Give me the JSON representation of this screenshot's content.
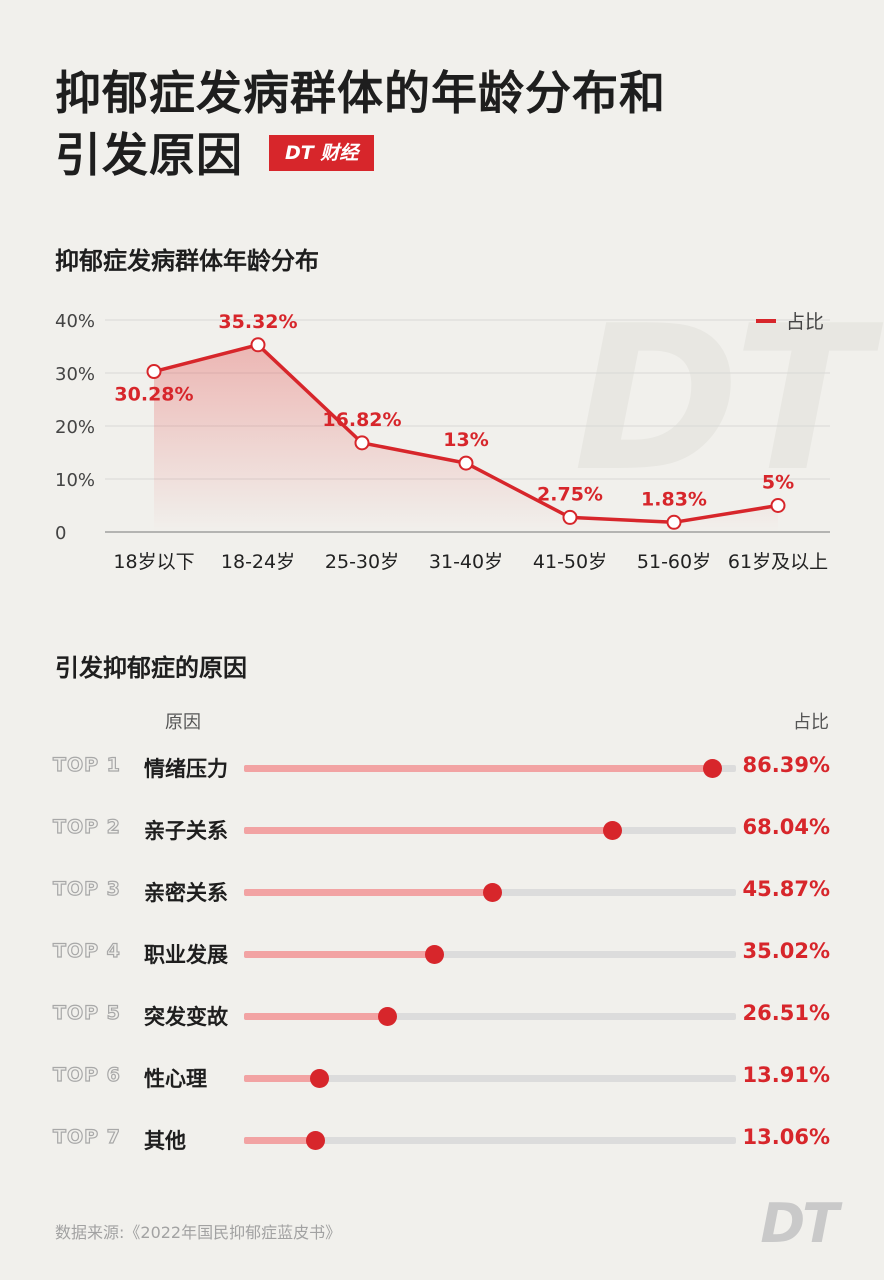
{
  "page": {
    "title_line1": "抑郁症发病群体的年龄分布和",
    "title_line2": "引发原因",
    "brand": "DT 财经",
    "watermark": "DT",
    "source": "数据来源:《2022年国民抑郁症蓝皮书》",
    "logo": "DT"
  },
  "colors": {
    "accent": "#d7262b",
    "bar_fill": "#f2a3a3",
    "track": "#dcdcdc",
    "background": "#f1f0ec"
  },
  "chart_data": [
    {
      "type": "line",
      "title": "抑郁症发病群体年龄分布",
      "categories": [
        "18岁以下",
        "18-24岁",
        "25-30岁",
        "31-40岁",
        "41-50岁",
        "51-60岁",
        "61岁及以上"
      ],
      "series": [
        {
          "name": "占比",
          "values": [
            30.28,
            35.32,
            16.82,
            13,
            2.75,
            1.83,
            5
          ],
          "labels": [
            "30.28%",
            "35.32%",
            "16.82%",
            "13%",
            "2.75%",
            "1.83%",
            "5%"
          ]
        }
      ],
      "ylim": [
        0,
        40
      ],
      "yticks": [
        "0",
        "10%",
        "20%",
        "30%",
        "40%"
      ],
      "grid": true,
      "legend": "top-right"
    },
    {
      "type": "bar",
      "title": "引发抑郁症的原因",
      "column_headers": {
        "reason": "原因",
        "share": "占比"
      },
      "rows": [
        {
          "rank": "TOP 1",
          "reason": "情绪压力",
          "value": 86.39,
          "label": "86.39%"
        },
        {
          "rank": "TOP 2",
          "reason": "亲子关系",
          "value": 68.04,
          "label": "68.04%"
        },
        {
          "rank": "TOP 3",
          "reason": "亲密关系",
          "value": 45.87,
          "label": "45.87%"
        },
        {
          "rank": "TOP 4",
          "reason": "职业发展",
          "value": 35.02,
          "label": "35.02%"
        },
        {
          "rank": "TOP 5",
          "reason": "突发变故",
          "value": 26.51,
          "label": "26.51%"
        },
        {
          "rank": "TOP 6",
          "reason": "性心理",
          "value": 13.91,
          "label": "13.91%"
        },
        {
          "rank": "TOP 7",
          "reason": "其他",
          "value": 13.06,
          "label": "13.06%"
        }
      ]
    }
  ]
}
